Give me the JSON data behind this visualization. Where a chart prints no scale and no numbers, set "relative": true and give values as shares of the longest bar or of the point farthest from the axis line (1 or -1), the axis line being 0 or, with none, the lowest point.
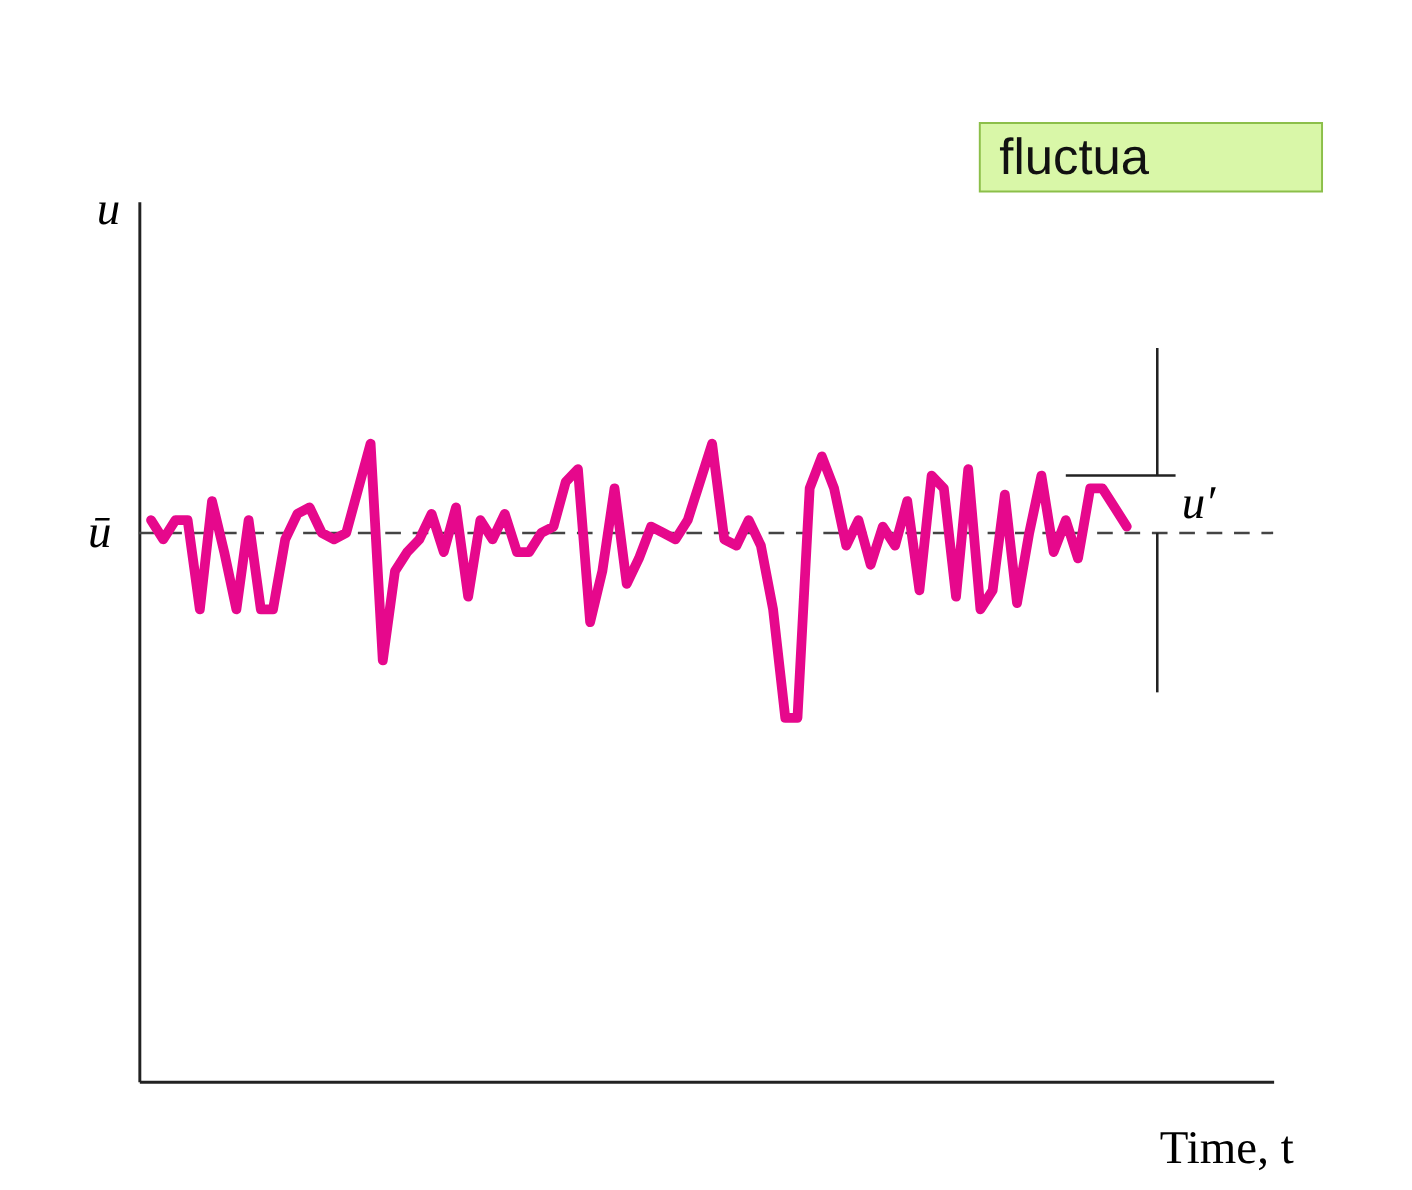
{
  "chart_data": {
    "type": "line",
    "relative": true,
    "ylabel": "u",
    "xlabel": "Time, t",
    "grid": false,
    "marker": "none",
    "line_style": "solid",
    "tick_labels": false,
    "categories": [
      null,
      null,
      null,
      null,
      null,
      null,
      null,
      null,
      null,
      null,
      null,
      null,
      null,
      null,
      null,
      null,
      null,
      null,
      null,
      null,
      null,
      null,
      null,
      null,
      null,
      null,
      null,
      null,
      null,
      null,
      null,
      null,
      null,
      null,
      null,
      null,
      null,
      null,
      null,
      null,
      null,
      null,
      null,
      null,
      null,
      null,
      null,
      null,
      null,
      null,
      null,
      null,
      null,
      null,
      null,
      null,
      null,
      null,
      null,
      null,
      null,
      null,
      null,
      null,
      null,
      null,
      null,
      null,
      null,
      null,
      null,
      null,
      null,
      null,
      null,
      null,
      null,
      null,
      null,
      null,
      null
    ],
    "series": [
      {
        "color": "#e6088c",
        "values": [
          0.88,
          0.85,
          0.88,
          0.88,
          0.74,
          0.91,
          0.83,
          0.74,
          0.88,
          0.74,
          0.74,
          0.85,
          0.89,
          0.9,
          0.86,
          0.85,
          0.86,
          0.93,
          1.0,
          0.66,
          0.8,
          0.83,
          0.85,
          0.89,
          0.83,
          0.9,
          0.76,
          0.88,
          0.85,
          0.89,
          0.83,
          0.83,
          0.86,
          0.87,
          0.94,
          0.96,
          0.72,
          0.8,
          0.93,
          0.78,
          0.82,
          0.87,
          0.86,
          0.85,
          0.88,
          0.94,
          1.0,
          0.85,
          0.84,
          0.88,
          0.84,
          0.74,
          0.57,
          0.57,
          0.93,
          0.98,
          0.93,
          0.84,
          0.88,
          0.81,
          0.87,
          0.84,
          0.91,
          0.77,
          0.95,
          0.93,
          0.76,
          0.96,
          0.74,
          0.77,
          0.92,
          0.75,
          0.86,
          0.95,
          0.83,
          0.88,
          0.82,
          0.93,
          0.93,
          0.9,
          0.87
        ]
      }
    ],
    "ref_lines": [
      {
        "axis": "y",
        "value": 0.86,
        "label": "ū",
        "color": "#444444",
        "line_style": "dashed"
      }
    ],
    "annotations": [
      "u′",
      "fluctua"
    ]
  }
}
